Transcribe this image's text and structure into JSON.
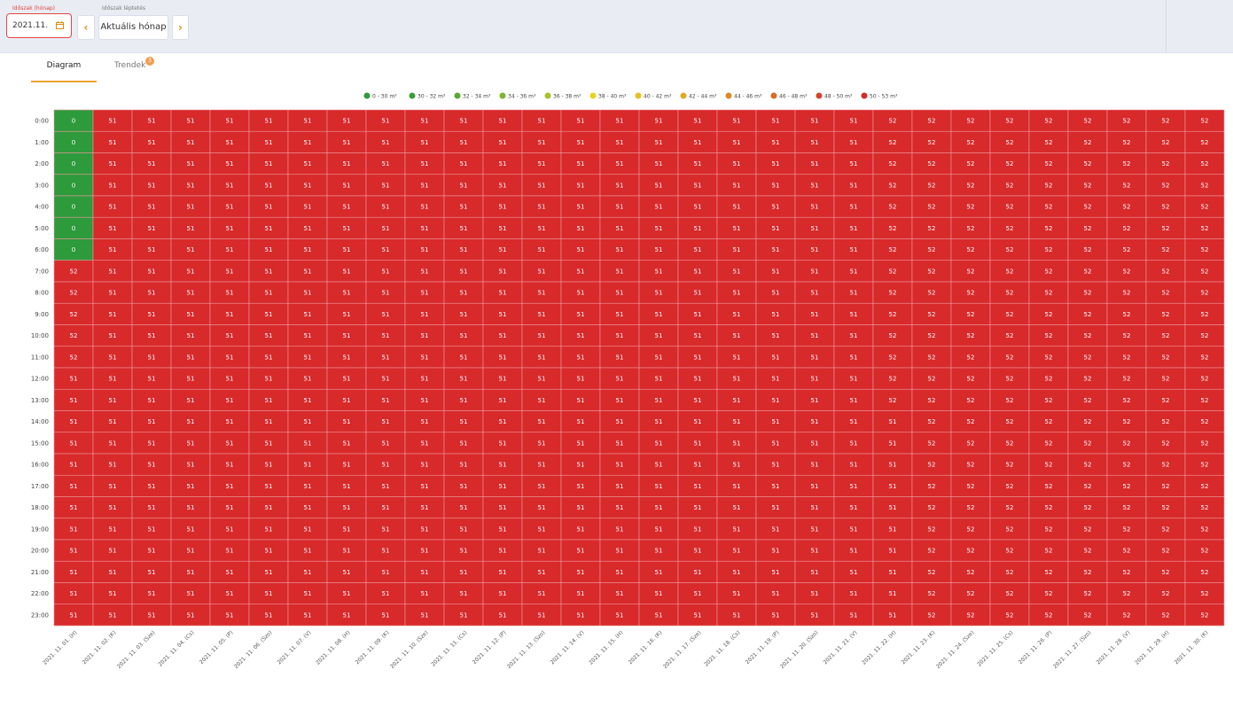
{
  "controls": {
    "period_label": "Időszak (hónap)",
    "period_value": "2021.11.",
    "step_label": "Időszak léptetés",
    "prev": "‹",
    "current_month": "Aktuális hónap",
    "next": "›",
    "tabs": [
      "Diagram",
      "Trendek"
    ],
    "trend_badge": "3"
  },
  "chart_data": {
    "type": "heatmap",
    "legend": [
      {
        "label": "0 - 30 m³",
        "range": [
          0,
          30
        ],
        "color": "#2d9a3c"
      },
      {
        "label": "30 - 32 m³",
        "range": [
          30,
          32
        ],
        "color": "#3b9b3a"
      },
      {
        "label": "32 - 34 m³",
        "range": [
          32,
          34
        ],
        "color": "#5aa834"
      },
      {
        "label": "34 - 36 m³",
        "range": [
          34,
          36
        ],
        "color": "#7db42e"
      },
      {
        "label": "36 - 38 m³",
        "range": [
          36,
          38
        ],
        "color": "#a9c12a"
      },
      {
        "label": "38 - 40 m³",
        "range": [
          38,
          40
        ],
        "color": "#e8d41e"
      },
      {
        "label": "40 - 42 m³",
        "range": [
          40,
          42
        ],
        "color": "#e6c21f"
      },
      {
        "label": "42 - 44 m³",
        "range": [
          42,
          44
        ],
        "color": "#e2a620"
      },
      {
        "label": "44 - 46 m³",
        "range": [
          44,
          46
        ],
        "color": "#de8a24"
      },
      {
        "label": "46 - 48 m³",
        "range": [
          46,
          48
        ],
        "color": "#d96a26"
      },
      {
        "label": "48 - 50 m³",
        "range": [
          48,
          50
        ],
        "color": "#d6432a"
      },
      {
        "label": "50 - 53 m³",
        "range": [
          50,
          53
        ],
        "color": "#d8292b"
      }
    ],
    "x": [
      "2021. 11. 01. (H)",
      "2021. 11. 02. (K)",
      "2021. 11. 03. (Sze)",
      "2021. 11. 04. (Cs)",
      "2021. 11. 05. (P)",
      "2021. 11. 06. (Szo)",
      "2021. 11. 07. (V)",
      "2021. 11. 08. (H)",
      "2021. 11. 09. (K)",
      "2021. 11. 10. (Sze)",
      "2021. 11. 11. (Cs)",
      "2021. 11. 12. (P)",
      "2021. 11. 13. (Szo)",
      "2021. 11. 14. (V)",
      "2021. 11. 15. (H)",
      "2021. 11. 16. (K)",
      "2021. 11. 17. (Sze)",
      "2021. 11. 18. (Cs)",
      "2021. 11. 19. (P)",
      "2021. 11. 20. (Szo)",
      "2021. 11. 21. (V)",
      "2021. 11. 22. (H)",
      "2021. 11. 23. (K)",
      "2021. 11. 24. (Sze)",
      "2021. 11. 25. (Cs)",
      "2021. 11. 26. (P)",
      "2021. 11. 27. (Szo)",
      "2021. 11. 28. (V)",
      "2021. 11. 29. (H)",
      "2021. 11. 30. (K)"
    ],
    "y": [
      "0:00",
      "1:00",
      "2:00",
      "3:00",
      "4:00",
      "5:00",
      "6:00",
      "7:00",
      "8:00",
      "9:00",
      "10:00",
      "11:00",
      "12:00",
      "13:00",
      "14:00",
      "15:00",
      "16:00",
      "17:00",
      "18:00",
      "19:00",
      "20:00",
      "21:00",
      "22:00",
      "23:00"
    ],
    "values": [
      [
        0,
        51,
        51,
        51,
        51,
        51,
        51,
        51,
        51,
        51,
        51,
        51,
        51,
        51,
        51,
        51,
        51,
        51,
        51,
        51,
        51,
        52,
        52,
        52,
        52,
        52,
        52,
        52,
        52,
        52
      ],
      [
        0,
        51,
        51,
        51,
        51,
        51,
        51,
        51,
        51,
        51,
        51,
        51,
        51,
        51,
        51,
        51,
        51,
        51,
        51,
        51,
        51,
        52,
        52,
        52,
        52,
        52,
        52,
        52,
        52,
        52
      ],
      [
        0,
        51,
        51,
        51,
        51,
        51,
        51,
        51,
        51,
        51,
        51,
        51,
        51,
        51,
        51,
        51,
        51,
        51,
        51,
        51,
        51,
        52,
        52,
        52,
        52,
        52,
        52,
        52,
        52,
        52
      ],
      [
        0,
        51,
        51,
        51,
        51,
        51,
        51,
        51,
        51,
        51,
        51,
        51,
        51,
        51,
        51,
        51,
        51,
        51,
        51,
        51,
        51,
        52,
        52,
        52,
        52,
        52,
        52,
        52,
        52,
        52
      ],
      [
        0,
        51,
        51,
        51,
        51,
        51,
        51,
        51,
        51,
        51,
        51,
        51,
        51,
        51,
        51,
        51,
        51,
        51,
        51,
        51,
        51,
        52,
        52,
        52,
        52,
        52,
        52,
        52,
        52,
        52
      ],
      [
        0,
        51,
        51,
        51,
        51,
        51,
        51,
        51,
        51,
        51,
        51,
        51,
        51,
        51,
        51,
        51,
        51,
        51,
        51,
        51,
        51,
        52,
        52,
        52,
        52,
        52,
        52,
        52,
        52,
        52
      ],
      [
        0,
        51,
        51,
        51,
        51,
        51,
        51,
        51,
        51,
        51,
        51,
        51,
        51,
        51,
        51,
        51,
        51,
        51,
        51,
        51,
        51,
        52,
        52,
        52,
        52,
        52,
        52,
        52,
        52,
        52
      ],
      [
        52,
        51,
        51,
        51,
        51,
        51,
        51,
        51,
        51,
        51,
        51,
        51,
        51,
        51,
        51,
        51,
        51,
        51,
        51,
        51,
        51,
        52,
        52,
        52,
        52,
        52,
        52,
        52,
        52,
        52
      ],
      [
        52,
        51,
        51,
        51,
        51,
        51,
        51,
        51,
        51,
        51,
        51,
        51,
        51,
        51,
        51,
        51,
        51,
        51,
        51,
        51,
        51,
        52,
        52,
        52,
        52,
        52,
        52,
        52,
        52,
        52
      ],
      [
        52,
        51,
        51,
        51,
        51,
        51,
        51,
        51,
        51,
        51,
        51,
        51,
        51,
        51,
        51,
        51,
        51,
        51,
        51,
        51,
        51,
        52,
        52,
        52,
        52,
        52,
        52,
        52,
        52,
        52
      ],
      [
        52,
        51,
        51,
        51,
        51,
        51,
        51,
        51,
        51,
        51,
        51,
        51,
        51,
        51,
        51,
        51,
        51,
        51,
        51,
        51,
        51,
        52,
        52,
        52,
        52,
        52,
        52,
        52,
        52,
        52
      ],
      [
        52,
        51,
        51,
        51,
        51,
        51,
        51,
        51,
        51,
        51,
        51,
        51,
        51,
        51,
        51,
        51,
        51,
        51,
        51,
        51,
        51,
        52,
        52,
        52,
        52,
        52,
        52,
        52,
        52,
        52
      ],
      [
        51,
        51,
        51,
        51,
        51,
        51,
        51,
        51,
        51,
        51,
        51,
        51,
        51,
        51,
        51,
        51,
        51,
        51,
        51,
        51,
        51,
        52,
        52,
        52,
        52,
        52,
        52,
        52,
        52,
        52
      ],
      [
        51,
        51,
        51,
        51,
        51,
        51,
        51,
        51,
        51,
        51,
        51,
        51,
        51,
        51,
        51,
        51,
        51,
        51,
        51,
        51,
        51,
        52,
        52,
        52,
        52,
        52,
        52,
        52,
        52,
        52
      ],
      [
        51,
        51,
        51,
        51,
        51,
        51,
        51,
        51,
        51,
        51,
        51,
        51,
        51,
        51,
        51,
        51,
        51,
        51,
        51,
        51,
        51,
        51,
        52,
        52,
        52,
        52,
        52,
        52,
        52,
        52
      ],
      [
        51,
        51,
        51,
        51,
        51,
        51,
        51,
        51,
        51,
        51,
        51,
        51,
        51,
        51,
        51,
        51,
        51,
        51,
        51,
        51,
        51,
        51,
        52,
        52,
        52,
        52,
        52,
        52,
        52,
        52
      ],
      [
        51,
        51,
        51,
        51,
        51,
        51,
        51,
        51,
        51,
        51,
        51,
        51,
        51,
        51,
        51,
        51,
        51,
        51,
        51,
        51,
        51,
        51,
        52,
        52,
        52,
        52,
        52,
        52,
        52,
        52
      ],
      [
        51,
        51,
        51,
        51,
        51,
        51,
        51,
        51,
        51,
        51,
        51,
        51,
        51,
        51,
        51,
        51,
        51,
        51,
        51,
        51,
        51,
        51,
        52,
        52,
        52,
        52,
        52,
        52,
        52,
        52
      ],
      [
        51,
        51,
        51,
        51,
        51,
        51,
        51,
        51,
        51,
        51,
        51,
        51,
        51,
        51,
        51,
        51,
        51,
        51,
        51,
        51,
        51,
        51,
        52,
        52,
        52,
        52,
        52,
        52,
        52,
        52
      ],
      [
        51,
        51,
        51,
        51,
        51,
        51,
        51,
        51,
        51,
        51,
        51,
        51,
        51,
        51,
        51,
        51,
        51,
        51,
        51,
        51,
        51,
        51,
        52,
        52,
        52,
        52,
        52,
        52,
        52,
        52
      ],
      [
        51,
        51,
        51,
        51,
        51,
        51,
        51,
        51,
        51,
        51,
        51,
        51,
        51,
        51,
        51,
        51,
        51,
        51,
        51,
        51,
        51,
        51,
        52,
        52,
        52,
        52,
        52,
        52,
        52,
        52
      ],
      [
        51,
        51,
        51,
        51,
        51,
        51,
        51,
        51,
        51,
        51,
        51,
        51,
        51,
        51,
        51,
        51,
        51,
        51,
        51,
        51,
        51,
        51,
        52,
        52,
        52,
        52,
        52,
        52,
        52,
        52
      ],
      [
        51,
        51,
        51,
        51,
        51,
        51,
        51,
        51,
        51,
        51,
        51,
        51,
        51,
        51,
        51,
        51,
        51,
        51,
        51,
        51,
        51,
        51,
        52,
        52,
        52,
        52,
        52,
        52,
        52,
        52
      ],
      [
        51,
        51,
        51,
        51,
        51,
        51,
        51,
        51,
        51,
        51,
        51,
        51,
        51,
        51,
        51,
        51,
        51,
        51,
        51,
        51,
        51,
        51,
        52,
        52,
        52,
        52,
        52,
        52,
        52,
        52
      ]
    ]
  }
}
